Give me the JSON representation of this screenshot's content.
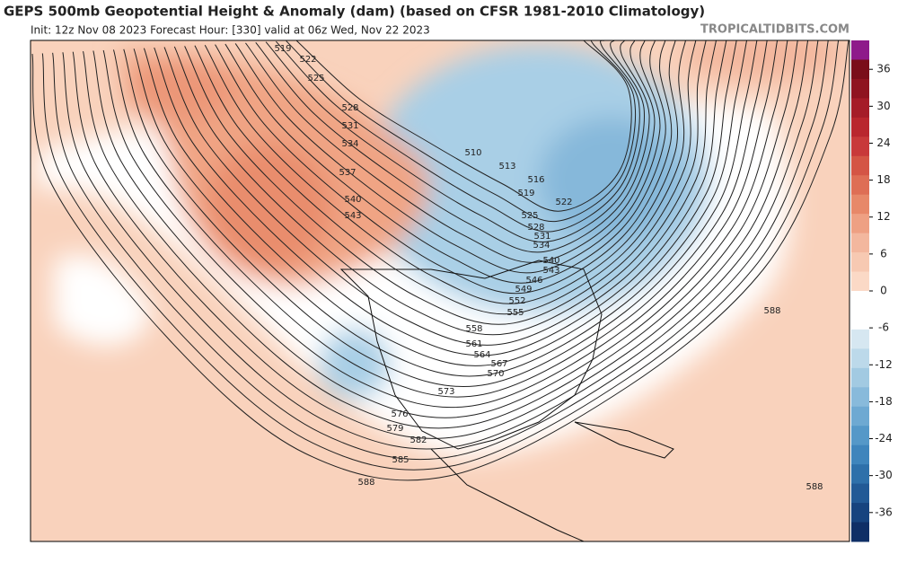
{
  "header": {
    "title": "GEPS 500mb Geopotential Height & Anomaly (dam) (based on CFSR 1981-2010 Climatology)",
    "subtitle": "Init: 12z Nov 08 2023   Forecast Hour: [330]   valid at 06z Wed, Nov 22 2023",
    "credit": "TROPICALTIDBITS.COM"
  },
  "colorbar": {
    "ticks": [
      36,
      30,
      24,
      18,
      12,
      6,
      0,
      -6,
      -12,
      -18,
      -24,
      -30,
      -36
    ],
    "colors": [
      "#8e1a8a",
      "#7a0e1a",
      "#8f1420",
      "#a51c28",
      "#b9262e",
      "#c8393a",
      "#d45545",
      "#de6e55",
      "#e78869",
      "#eea083",
      "#f3b79e",
      "#f7c9b2",
      "#fbd9c6",
      "#ffffff",
      "#ffffff",
      "#d6e7f1",
      "#bcd9ea",
      "#a2cae2",
      "#88badb",
      "#6ea9d2",
      "#5598c8",
      "#3f85bc",
      "#2e70aa",
      "#225a96",
      "#17447f",
      "#0f2f66"
    ]
  },
  "contour_labels": [
    519,
    522,
    525,
    528,
    531,
    534,
    537,
    540,
    543,
    510,
    513,
    516,
    519,
    522,
    525,
    528,
    531,
    534,
    540,
    543,
    546,
    549,
    552,
    555,
    558,
    561,
    564,
    567,
    570,
    573,
    576,
    579,
    582,
    585,
    588,
    588,
    588
  ]
}
